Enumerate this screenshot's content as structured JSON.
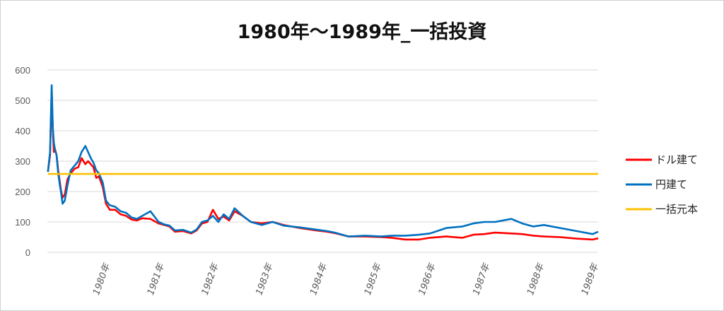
{
  "chart_data": {
    "type": "line",
    "title": "1980年～1989年_一括投資",
    "xlabel": "",
    "ylabel": "",
    "ylim": [
      0,
      600
    ],
    "yticks": [
      0,
      100,
      200,
      300,
      400,
      500,
      600
    ],
    "xlim": [
      1978.85,
      1989.0
    ],
    "xticks": [
      {
        "value": 1980,
        "label": "1980年"
      },
      {
        "value": 1981,
        "label": "1981年"
      },
      {
        "value": 1982,
        "label": "1982年"
      },
      {
        "value": 1983,
        "label": "1983年"
      },
      {
        "value": 1984,
        "label": "1984年"
      },
      {
        "value": 1985,
        "label": "1985年"
      },
      {
        "value": 1986,
        "label": "1986年"
      },
      {
        "value": 1987,
        "label": "1987年"
      },
      {
        "value": 1988,
        "label": "1988年"
      },
      {
        "value": 1989,
        "label": "1989年"
      }
    ],
    "grid": true,
    "legend": "right",
    "series": [
      {
        "name": "ドル建て",
        "color": "#ff0000",
        "x": [
          1978.86,
          1978.9,
          1978.93,
          1978.95,
          1978.97,
          1978.99,
          1979.02,
          1979.05,
          1979.08,
          1979.1,
          1979.13,
          1979.17,
          1979.22,
          1979.28,
          1979.35,
          1979.42,
          1979.48,
          1979.55,
          1979.6,
          1979.65,
          1979.7,
          1979.75,
          1979.8,
          1979.87,
          1979.93,
          1980.0,
          1980.1,
          1980.2,
          1980.3,
          1980.4,
          1980.5,
          1980.6,
          1980.75,
          1980.9,
          1981.0,
          1981.1,
          1981.2,
          1981.35,
          1981.5,
          1981.6,
          1981.7,
          1981.8,
          1981.9,
          1982.0,
          1982.1,
          1982.2,
          1982.3,
          1982.45,
          1982.6,
          1982.8,
          1983.0,
          1983.2,
          1983.5,
          1983.8,
          1984.0,
          1984.15,
          1984.4,
          1984.7,
          1985.0,
          1985.2,
          1985.45,
          1985.7,
          1985.9,
          1986.2,
          1986.5,
          1986.7,
          1986.9,
          1987.1,
          1987.4,
          1987.6,
          1987.8,
          1988.0,
          1988.3,
          1988.6,
          1988.9,
          1989.0
        ],
        "values": [
          265,
          320,
          530,
          400,
          330,
          340,
          320,
          270,
          230,
          205,
          180,
          190,
          240,
          260,
          275,
          280,
          310,
          290,
          300,
          290,
          280,
          245,
          250,
          215,
          160,
          140,
          140,
          125,
          120,
          108,
          105,
          112,
          110,
          95,
          90,
          85,
          68,
          70,
          62,
          72,
          95,
          100,
          140,
          110,
          118,
          105,
          135,
          120,
          100,
          95,
          100,
          90,
          80,
          72,
          68,
          63,
          52,
          52,
          50,
          48,
          42,
          42,
          48,
          52,
          48,
          58,
          60,
          65,
          62,
          60,
          55,
          52,
          50,
          45,
          42,
          46
        ]
      },
      {
        "name": "円建て",
        "color": "#0070c0",
        "x": [
          1978.86,
          1978.9,
          1978.93,
          1978.95,
          1978.97,
          1978.99,
          1979.02,
          1979.05,
          1979.08,
          1979.1,
          1979.13,
          1979.17,
          1979.22,
          1979.28,
          1979.35,
          1979.42,
          1979.48,
          1979.55,
          1979.6,
          1979.65,
          1979.7,
          1979.75,
          1979.8,
          1979.87,
          1979.93,
          1980.0,
          1980.1,
          1980.2,
          1980.3,
          1980.4,
          1980.5,
          1980.6,
          1980.75,
          1980.9,
          1981.0,
          1981.1,
          1981.2,
          1981.35,
          1981.5,
          1981.6,
          1981.7,
          1981.8,
          1981.9,
          1982.0,
          1982.1,
          1982.2,
          1982.3,
          1982.45,
          1982.6,
          1982.8,
          1983.0,
          1983.2,
          1983.5,
          1983.8,
          1984.0,
          1984.15,
          1984.4,
          1984.7,
          1985.0,
          1985.2,
          1985.45,
          1985.7,
          1985.9,
          1986.2,
          1986.5,
          1986.7,
          1986.9,
          1987.1,
          1987.4,
          1987.6,
          1987.8,
          1988.0,
          1988.3,
          1988.6,
          1988.9,
          1989.0
        ],
        "values": [
          265,
          330,
          550,
          410,
          360,
          340,
          320,
          260,
          220,
          200,
          160,
          170,
          220,
          270,
          285,
          300,
          330,
          350,
          330,
          310,
          295,
          270,
          260,
          230,
          170,
          155,
          150,
          135,
          130,
          115,
          110,
          120,
          135,
          100,
          92,
          88,
          72,
          74,
          65,
          75,
          100,
          105,
          120,
          100,
          125,
          110,
          145,
          120,
          100,
          90,
          100,
          88,
          82,
          75,
          70,
          65,
          52,
          55,
          52,
          55,
          55,
          58,
          62,
          80,
          85,
          95,
          100,
          100,
          110,
          95,
          85,
          90,
          80,
          70,
          60,
          68
        ]
      },
      {
        "name": "一括元本",
        "color": "#ffc000",
        "x": [
          1978.86,
          1989.0
        ],
        "values": [
          258,
          258
        ]
      }
    ]
  }
}
